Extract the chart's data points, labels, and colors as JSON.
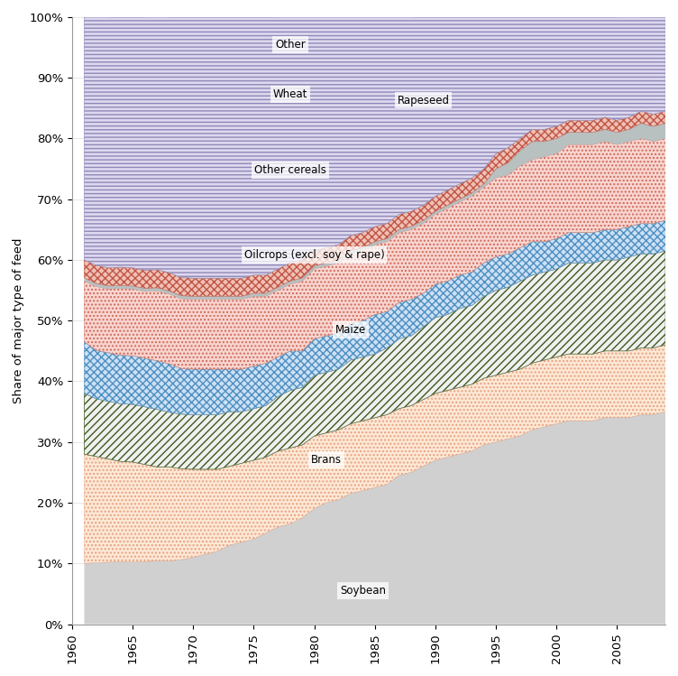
{
  "years": [
    1961,
    1962,
    1963,
    1964,
    1965,
    1966,
    1967,
    1968,
    1969,
    1970,
    1971,
    1972,
    1973,
    1974,
    1975,
    1976,
    1977,
    1978,
    1979,
    1980,
    1981,
    1982,
    1983,
    1984,
    1985,
    1986,
    1987,
    1988,
    1989,
    1990,
    1991,
    1992,
    1993,
    1994,
    1995,
    1996,
    1997,
    1998,
    1999,
    2000,
    2001,
    2002,
    2003,
    2004,
    2005,
    2006,
    2007,
    2008,
    2009
  ],
  "layers": {
    "Soybean": [
      10.0,
      10.1,
      10.2,
      10.3,
      10.2,
      10.3,
      10.4,
      10.4,
      10.6,
      11.0,
      11.5,
      12.0,
      13.0,
      13.5,
      14.0,
      15.0,
      16.0,
      16.5,
      17.5,
      19.0,
      20.0,
      20.5,
      21.5,
      22.0,
      22.5,
      23.0,
      24.5,
      25.0,
      26.0,
      27.0,
      27.5,
      28.0,
      28.5,
      29.5,
      30.0,
      30.5,
      31.0,
      32.0,
      32.5,
      33.0,
      33.5,
      33.5,
      33.5,
      34.0,
      34.0,
      34.0,
      34.5,
      34.5,
      35.0
    ],
    "Brans": [
      18.0,
      17.5,
      17.0,
      16.5,
      16.5,
      16.0,
      15.5,
      15.5,
      15.0,
      14.5,
      14.0,
      13.5,
      13.0,
      13.0,
      13.0,
      12.5,
      12.5,
      12.5,
      12.0,
      12.0,
      11.5,
      11.5,
      11.5,
      11.5,
      11.5,
      11.5,
      11.0,
      11.0,
      11.0,
      11.0,
      11.0,
      11.0,
      11.0,
      11.0,
      11.0,
      11.0,
      11.0,
      11.0,
      11.0,
      11.0,
      11.0,
      11.0,
      11.0,
      11.0,
      11.0,
      11.0,
      11.0,
      11.0,
      11.0
    ],
    "Maize": [
      10.0,
      9.5,
      9.5,
      9.5,
      9.5,
      9.5,
      9.5,
      9.0,
      9.0,
      9.0,
      9.0,
      9.0,
      9.0,
      8.5,
      8.5,
      8.5,
      9.0,
      9.5,
      9.5,
      10.0,
      10.0,
      10.0,
      10.5,
      10.5,
      10.5,
      11.0,
      11.5,
      11.5,
      12.0,
      12.5,
      12.5,
      13.0,
      13.0,
      13.5,
      14.0,
      14.0,
      14.5,
      14.5,
      14.5,
      14.5,
      15.0,
      15.0,
      15.0,
      15.0,
      15.0,
      15.5,
      15.5,
      15.5,
      15.5
    ],
    "Oilcrops": [
      8.5,
      8.0,
      8.0,
      8.0,
      8.0,
      8.0,
      8.0,
      8.0,
      7.5,
      7.5,
      7.5,
      7.5,
      7.0,
      7.0,
      7.0,
      7.0,
      6.5,
      6.5,
      6.0,
      6.0,
      6.0,
      6.0,
      6.0,
      6.0,
      6.5,
      6.0,
      6.0,
      6.0,
      5.5,
      5.5,
      5.5,
      5.5,
      5.5,
      5.5,
      5.5,
      5.5,
      5.5,
      5.5,
      5.0,
      5.0,
      5.0,
      5.0,
      5.0,
      5.0,
      5.0,
      5.0,
      5.0,
      5.0,
      5.0
    ],
    "Other_cereals": [
      10.0,
      10.5,
      10.5,
      11.0,
      11.0,
      11.0,
      11.5,
      11.5,
      11.5,
      11.5,
      11.5,
      11.5,
      11.5,
      11.5,
      11.5,
      11.0,
      11.0,
      11.0,
      11.5,
      11.5,
      11.5,
      11.5,
      11.5,
      11.5,
      11.5,
      11.5,
      11.5,
      11.5,
      11.5,
      11.5,
      12.0,
      12.0,
      12.5,
      12.5,
      13.0,
      13.0,
      13.5,
      13.5,
      14.0,
      14.0,
      14.5,
      14.5,
      14.5,
      14.5,
      14.0,
      14.0,
      14.0,
      13.5,
      13.5
    ],
    "Rapeseed": [
      0.5,
      0.5,
      0.5,
      0.5,
      0.5,
      0.5,
      0.5,
      0.5,
      0.5,
      0.5,
      0.5,
      0.5,
      0.5,
      0.5,
      0.5,
      0.5,
      0.5,
      0.5,
      0.5,
      0.5,
      0.5,
      0.5,
      0.5,
      0.5,
      0.5,
      0.5,
      0.5,
      0.5,
      0.5,
      0.5,
      0.5,
      0.5,
      0.5,
      0.5,
      1.5,
      2.0,
      2.5,
      3.0,
      2.5,
      2.5,
      2.0,
      2.0,
      2.0,
      2.0,
      2.0,
      2.0,
      2.5,
      2.5,
      2.5
    ],
    "Wheat": [
      3.0,
      3.0,
      3.0,
      3.0,
      3.0,
      3.0,
      3.0,
      3.0,
      3.0,
      3.0,
      3.0,
      3.0,
      3.0,
      3.0,
      3.0,
      3.0,
      3.0,
      3.0,
      3.0,
      2.5,
      2.5,
      2.5,
      2.5,
      2.5,
      2.5,
      2.5,
      2.5,
      2.5,
      2.5,
      2.5,
      2.5,
      2.5,
      2.5,
      2.5,
      2.5,
      2.5,
      2.0,
      2.0,
      2.0,
      2.0,
      2.0,
      2.0,
      2.0,
      2.0,
      2.0,
      2.0,
      2.0,
      2.0,
      2.0
    ],
    "Other": [
      40.0,
      41.0,
      41.3,
      41.2,
      41.3,
      41.7,
      42.1,
      42.1,
      42.9,
      43.0,
      43.0,
      43.0,
      43.0,
      43.0,
      42.5,
      42.5,
      41.5,
      41.0,
      40.5,
      38.5,
      38.5,
      38.5,
      37.0,
      36.5,
      35.0,
      34.5,
      33.0,
      32.0,
      31.0,
      29.5,
      28.5,
      27.5,
      26.5,
      25.0,
      22.5,
      21.5,
      20.0,
      18.5,
      18.5,
      18.0,
      17.0,
      17.0,
      17.0,
      16.5,
      17.0,
      17.0,
      15.5,
      16.0,
      15.5
    ]
  },
  "layer_order": [
    "Soybean",
    "Brans",
    "Maize",
    "Oilcrops",
    "Other_cereals",
    "Rapeseed",
    "Wheat",
    "Other"
  ],
  "ylabel": "Share of major type of feed",
  "ytick_labels": [
    "0%",
    "10%",
    "20%",
    "30%",
    "40%",
    "50%",
    "60%",
    "70%",
    "80%",
    "90%",
    "100%"
  ],
  "xticks": [
    1960,
    1965,
    1970,
    1975,
    1980,
    1985,
    1990,
    1995,
    2000,
    2005
  ],
  "background_color": "#ffffff"
}
